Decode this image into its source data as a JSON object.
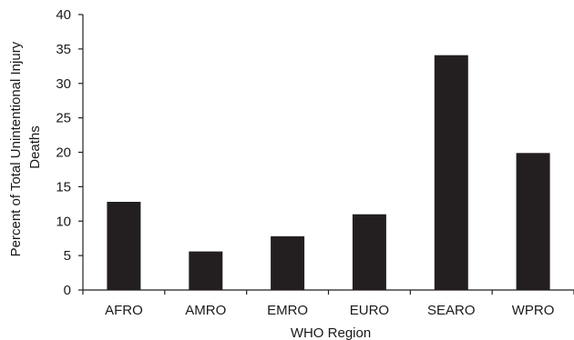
{
  "chart_data": {
    "type": "bar",
    "categories": [
      "AFRO",
      "AMRO",
      "EMRO",
      "EURO",
      "SEARO",
      "WPRO"
    ],
    "values": [
      12.8,
      5.6,
      7.8,
      11.0,
      34.1,
      19.9
    ],
    "title": "",
    "xlabel": "WHO Region",
    "ylabel_lines": [
      "Percent of Total Unintentional Injury",
      "Deaths"
    ],
    "ylim": [
      0,
      40
    ],
    "yticks": [
      "0",
      "5",
      "10",
      "15",
      "20",
      "25",
      "30",
      "35",
      "40"
    ],
    "grid": false,
    "legend": "none",
    "bar_color": "#231f20",
    "axis_color": "#231f20"
  }
}
